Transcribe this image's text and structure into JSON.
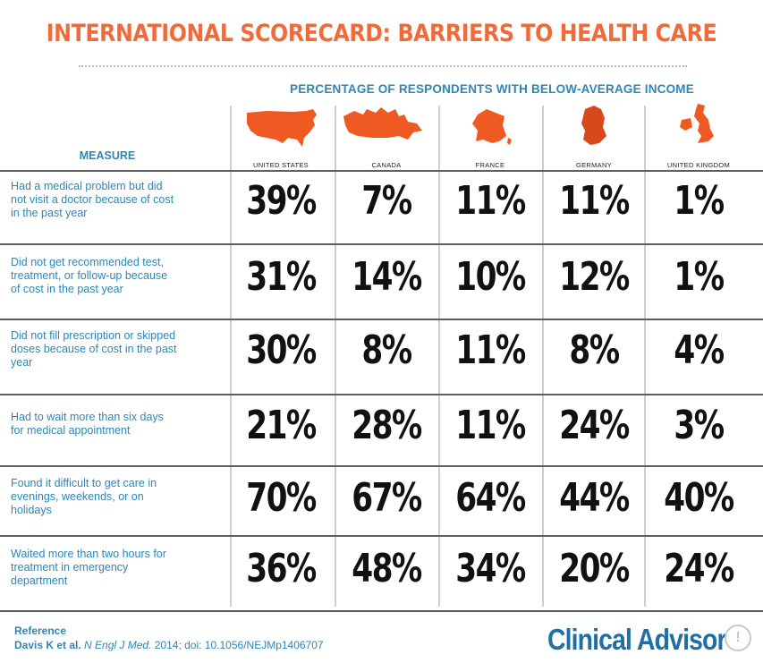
{
  "title": "INTERNATIONAL SCORECARD:  BARRIERS TO HEALTH CARE",
  "subtitle": "PERCENTAGE OF RESPONDENTS WITH BELOW-AVERAGE INCOME",
  "colors": {
    "title": "#ef6c3a",
    "label": "#2e86b8",
    "map_orange": "#ef5a22",
    "map_dark": "#d9481a",
    "brand": "#1f6fa6"
  },
  "chart_data": {
    "type": "table",
    "title": "INTERNATIONAL SCORECARD:  BARRIERS TO HEALTH CARE",
    "subtitle": "PERCENTAGE OF RESPONDENTS WITH BELOW-AVERAGE INCOME",
    "row_header": "MEASURE",
    "columns": [
      "UNITED STATES",
      "CANADA",
      "FRANCE",
      "GERMANY",
      "UNITED KINGDOM"
    ],
    "column_icons": [
      "usa-map-icon",
      "canada-map-icon",
      "france-map-icon",
      "germany-map-icon",
      "uk-map-icon"
    ],
    "rows": [
      {
        "measure": [
          "Had a medical problem but did",
          "not visit a doctor because of cost",
          "in the past year"
        ],
        "values": [
          "39%",
          "7%",
          "11%",
          "11%",
          "1%"
        ]
      },
      {
        "measure": [
          "Did not get recommended test,",
          "treatment, or follow-up because",
          "of cost in the past year"
        ],
        "values": [
          "31%",
          "14%",
          "10%",
          "12%",
          "1%"
        ]
      },
      {
        "measure": [
          "Did not fill prescription or skipped",
          "doses because of cost in the past",
          "year"
        ],
        "values": [
          "30%",
          "8%",
          "11%",
          "8%",
          "4%"
        ]
      },
      {
        "measure": [
          "Had to wait more than six days",
          "for medical appointment"
        ],
        "values": [
          "21%",
          "28%",
          "11%",
          "24%",
          "3%"
        ]
      },
      {
        "measure": [
          "Found it difficult to get care in",
          "evenings, weekends, or on",
          "holidays"
        ],
        "values": [
          "70%",
          "67%",
          "64%",
          "44%",
          "40%"
        ]
      },
      {
        "measure": [
          "Waited more than two hours for",
          "treatment in emergency",
          "department"
        ],
        "values": [
          "36%",
          "48%",
          "34%",
          "20%",
          "24%"
        ]
      }
    ]
  },
  "reference": {
    "heading": "Reference",
    "authors": "Davis K et al.",
    "journal": "N Engl J Med.",
    "details": "2014; doi: 10.1056/NEJMp1406707"
  },
  "brand": "Clinical Advisor"
}
